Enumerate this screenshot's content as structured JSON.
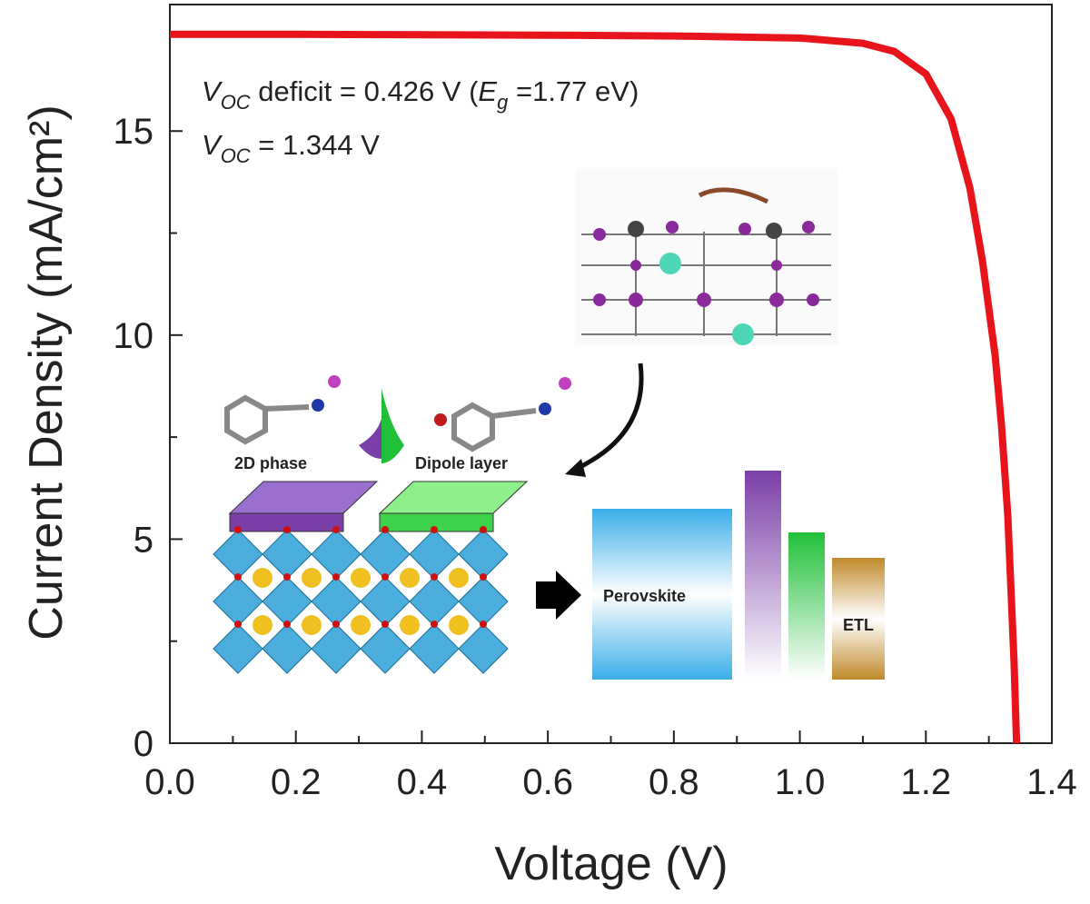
{
  "chart_data": {
    "type": "line",
    "xlabel": "Voltage (V)",
    "ylabel": "Current Density (mA/cm²)",
    "annotations": [
      [
        "V",
        "OC",
        " deficit = 0.426 V (",
        "E",
        "g",
        " =1.77 eV)"
      ],
      [
        "V",
        "OC",
        " = 1.344 V"
      ]
    ],
    "inset_labels": [
      "2D phase",
      "Dipole layer",
      "Perovskite",
      "ETL"
    ],
    "xlim": [
      0,
      1.4
    ],
    "ylim": [
      0,
      18.1
    ],
    "xticks": [
      {
        "value": 0,
        "label": "0.0"
      },
      0.2,
      0.4,
      0.6,
      0.8,
      {
        "value": 1,
        "label": "1.0"
      },
      1.2,
      1.4
    ],
    "yticks": [
      0,
      5,
      10,
      15
    ],
    "x": [
      0,
      0.2,
      0.4,
      0.6,
      0.8,
      1.0,
      1.1,
      1.15,
      1.2,
      1.24,
      1.27,
      1.29,
      1.31,
      1.32,
      1.33,
      1.34,
      1.344
    ],
    "series": [
      {
        "color": "#e8141c",
        "values": [
          17.37,
          17.37,
          17.36,
          17.35,
          17.33,
          17.28,
          17.15,
          16.95,
          16.4,
          15.3,
          13.6,
          11.8,
          9.5,
          7.8,
          5.6,
          2.0,
          0
        ]
      }
    ]
  }
}
